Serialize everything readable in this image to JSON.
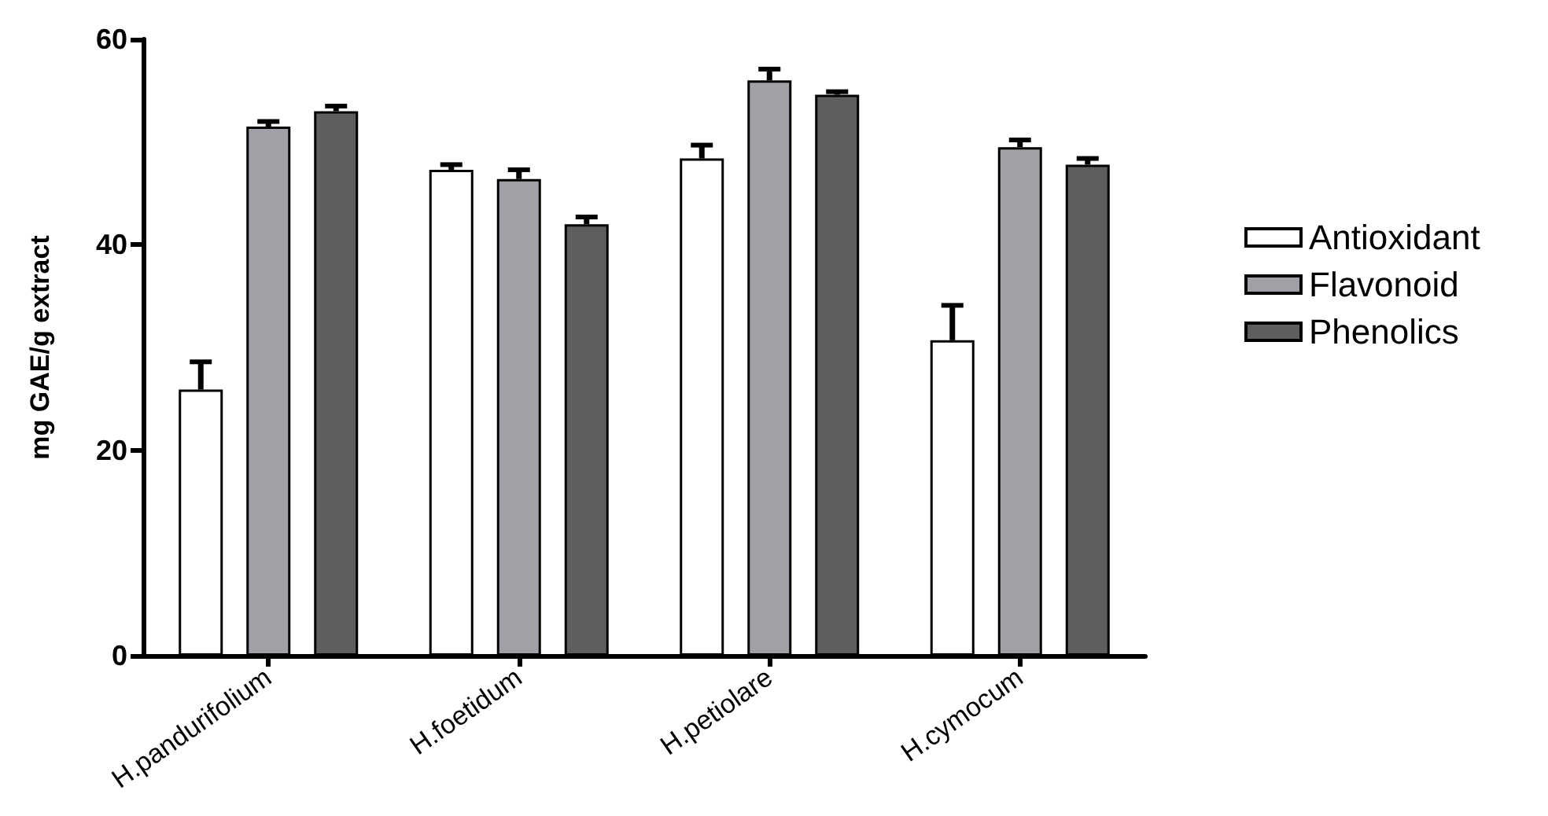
{
  "chart_data": {
    "type": "bar",
    "ylabel": "mg GAE/g extract",
    "categories": [
      "H.pandurifolium",
      "H.foetidum",
      "H.petiolare",
      "H.cymocum"
    ],
    "series": [
      {
        "name": "Antioxidant",
        "color": "#ffffff",
        "values": [
          25.9,
          47.3,
          48.4,
          30.7
        ],
        "errors": [
          [
            25.9,
            28.6
          ],
          [
            47.3,
            47.8
          ],
          [
            48.4,
            49.7
          ],
          [
            30.7,
            34.1
          ]
        ]
      },
      {
        "name": "Flavonoid",
        "color": "#a0a0a6",
        "values": [
          51.5,
          46.4,
          56.0,
          49.5
        ],
        "errors": [
          [
            51.5,
            52.0
          ],
          [
            46.4,
            47.3
          ],
          [
            56.0,
            57.1
          ],
          [
            49.5,
            50.2
          ]
        ]
      },
      {
        "name": "Phenolics",
        "color": "#5e5e5e",
        "values": [
          53.0,
          42.0,
          54.6,
          47.8
        ],
        "errors": [
          [
            53.0,
            53.5
          ],
          [
            42.0,
            42.7
          ],
          [
            54.6,
            54.9
          ],
          [
            47.8,
            48.4
          ]
        ]
      }
    ],
    "ylim": [
      0,
      60
    ],
    "yticks": [
      0,
      20,
      40,
      60
    ],
    "legend": "right"
  }
}
